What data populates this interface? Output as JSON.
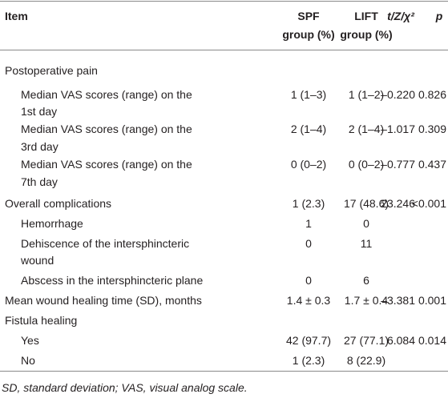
{
  "table": {
    "header": [
      "Item",
      [
        "SPF",
        "group (%)"
      ],
      [
        "LIFT",
        "group (%)"
      ],
      "t/Z/χ²",
      "p"
    ],
    "rows": [
      [
        "Postoperative pain"
      ],
      [
        [
          "Median VAS scores (range) on the",
          "1st day"
        ],
        "1 (1–3)",
        "1 (1–2)",
        "–0.220",
        "0.826"
      ],
      [
        [
          "Median VAS scores (range) on the",
          "3rd day"
        ],
        "2 (1–4)",
        "2 (1–4)",
        "–1.017",
        "0.309"
      ],
      [
        [
          "Median VAS scores (range) on the",
          "7th day"
        ],
        "0 (0–2)",
        "0 (0–2)",
        "–0.777",
        "0.437"
      ],
      [
        "Overall complications",
        "1 (2.3)",
        "17 (48.6)",
        "23.246",
        "<0.001"
      ],
      [
        "Hemorrhage",
        "1",
        "0"
      ],
      [
        [
          "Dehiscence of the intersphincteric",
          "wound"
        ],
        "0",
        "11"
      ],
      [
        "Abscess in the intersphincteric plane",
        "0",
        "6"
      ],
      [
        "Mean wound healing time (SD), months",
        "1.4 ± 0.3",
        "1.7 ± 0.4",
        "–3.381",
        "0.001"
      ],
      [
        "Fistula healing"
      ],
      [
        "Yes",
        "42 (97.7)",
        "27 (77.1)",
        "6.084",
        "0.014"
      ],
      [
        "No",
        "1 (2.3)",
        "8 (22.9)"
      ]
    ]
  },
  "footnote": "SD, standard deviation; VAS, visual analog scale."
}
